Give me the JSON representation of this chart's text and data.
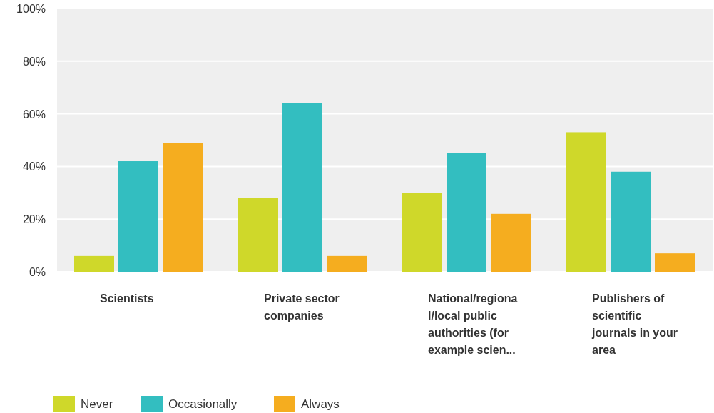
{
  "chart_data": {
    "type": "bar",
    "categories": [
      "Scientists",
      "Private sector companies",
      "National/regional/local public authorities (for example scien...",
      "Publishers of scientific journals in your area"
    ],
    "series": [
      {
        "name": "Never",
        "color": "#cfd82a",
        "values": [
          6,
          28,
          30,
          53
        ]
      },
      {
        "name": "Occasionally",
        "color": "#33bec0",
        "values": [
          42,
          64,
          45,
          38
        ]
      },
      {
        "name": "Always",
        "color": "#f5ad1f",
        "values": [
          49,
          6,
          22,
          7
        ]
      }
    ],
    "ylim": [
      0,
      100
    ],
    "yticks": [
      {
        "value": 0,
        "label": "0%"
      },
      {
        "value": 20,
        "label": "20%"
      },
      {
        "value": 40,
        "label": "40%"
      },
      {
        "value": 60,
        "label": "60%"
      },
      {
        "value": 80,
        "label": "80%"
      },
      {
        "value": 100,
        "label": "100%"
      }
    ],
    "grid": "y",
    "legend": "bottom left"
  }
}
